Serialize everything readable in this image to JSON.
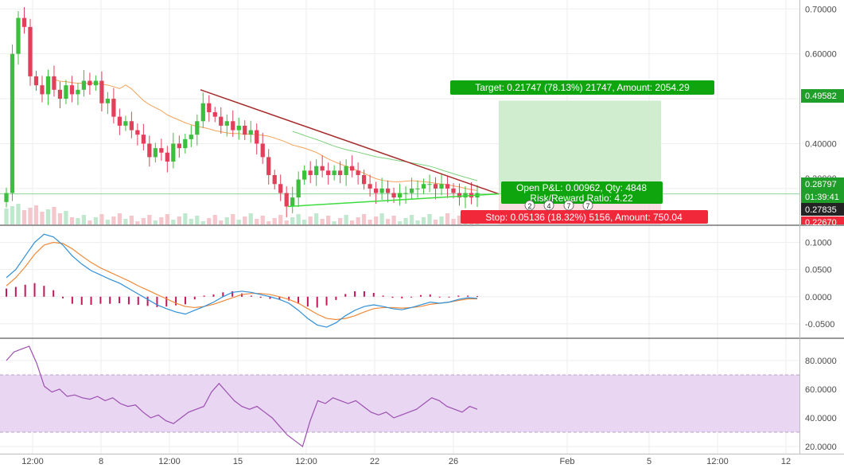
{
  "colors": {
    "up": "#26a69a",
    "up_bright": "#3cbf3c",
    "down": "#e0405a",
    "ma_fast": "#f5a35b",
    "ma_slow": "#7fd17f",
    "resistance": "#a52a2a",
    "support": "#3ddc3d",
    "macd": "#2f8fd8",
    "signal": "#f08a3a",
    "hist": "#c2185b",
    "rsi": "#9c4fb0",
    "rsi_band": "#e9d6f3",
    "target_zone": "#cdeccd",
    "target_label": "#0ea50e",
    "stop_label": "#f0283a",
    "pnl_label": "#0ea50e",
    "axis_badge_dark": "#232323",
    "axis_badge_green": "#1f9e2a"
  },
  "chart_data": [
    {
      "type": "candlestick",
      "panel": "price",
      "x_ticks": [
        "12:00",
        "8",
        "12:00",
        "15",
        "12:00",
        "22",
        "26",
        "Feb",
        "5",
        "12:00",
        "12"
      ],
      "y_ticks": [
        "0.70000",
        "0.60000",
        "0.40000",
        "0.30000"
      ],
      "ylim": [
        0.22,
        0.72
      ],
      "grid": true,
      "close_series": [
        0.29,
        0.6,
        0.68,
        0.66,
        0.55,
        0.53,
        0.51,
        0.55,
        0.52,
        0.5,
        0.53,
        0.51,
        0.52,
        0.54,
        0.53,
        0.54,
        0.49,
        0.5,
        0.46,
        0.44,
        0.45,
        0.43,
        0.42,
        0.4,
        0.37,
        0.39,
        0.38,
        0.36,
        0.4,
        0.39,
        0.41,
        0.42,
        0.45,
        0.49,
        0.47,
        0.46,
        0.44,
        0.45,
        0.43,
        0.44,
        0.42,
        0.43,
        0.4,
        0.37,
        0.33,
        0.31,
        0.29,
        0.26,
        0.28,
        0.32,
        0.34,
        0.33,
        0.35,
        0.34,
        0.33,
        0.34,
        0.33,
        0.35,
        0.34,
        0.33,
        0.31,
        0.3,
        0.29,
        0.3,
        0.29,
        0.28,
        0.29,
        0.29,
        0.3,
        0.3,
        0.31,
        0.31,
        0.3,
        0.31,
        0.3,
        0.29,
        0.28,
        0.29,
        0.28,
        0.29
      ],
      "trendlines": [
        {
          "kind": "resistance",
          "from": [
            0.51,
            0.52
          ],
          "to": [
            0.288,
            0.288
          ]
        },
        {
          "kind": "support",
          "from": [
            0.26,
            0.26
          ],
          "to": [
            0.288,
            0.288
          ]
        }
      ],
      "annotations": {
        "target": "Target: 0.21747 (78.13%) 21747, Amount: 2054.29",
        "pnl": "Open P&L: 0.00962, Qty: 4848",
        "risk_reward": "Risk/Reward Ratio: 4.22",
        "stop": "Stop: 0.05136 (18.32%) 5156, Amount: 750.04",
        "target_price": "0.49582",
        "entry_price": "0.28797",
        "countdown": "01:39:41",
        "last_price": "0.27835",
        "stop_price_partial": "0.22670",
        "hidden_tick": "0.30000",
        "event_markers": [
          "2",
          "4",
          "7",
          "7"
        ]
      }
    },
    {
      "type": "line",
      "panel": "macd",
      "y_ticks": [
        "0.1000",
        "0.0500",
        "0.0000",
        "-0.0500"
      ],
      "ylim": [
        -0.075,
        0.13
      ],
      "series": [
        {
          "role": "macd",
          "values": [
            0.035,
            0.05,
            0.075,
            0.1,
            0.115,
            0.11,
            0.095,
            0.075,
            0.06,
            0.048,
            0.04,
            0.032,
            0.025,
            0.015,
            0.005,
            -0.005,
            -0.015,
            -0.022,
            -0.028,
            -0.032,
            -0.025,
            -0.018,
            -0.01,
            0.0,
            0.008,
            0.01,
            0.008,
            0.004,
            0.0,
            -0.005,
            -0.012,
            -0.025,
            -0.04,
            -0.052,
            -0.056,
            -0.048,
            -0.035,
            -0.025,
            -0.018,
            -0.015,
            -0.018,
            -0.022,
            -0.024,
            -0.02,
            -0.015,
            -0.01,
            -0.012,
            -0.01,
            -0.005,
            -0.002,
            -0.003
          ]
        },
        {
          "role": "signal",
          "values": [
            0.02,
            0.035,
            0.055,
            0.078,
            0.095,
            0.1,
            0.098,
            0.088,
            0.075,
            0.063,
            0.053,
            0.045,
            0.037,
            0.029,
            0.02,
            0.012,
            0.004,
            -0.004,
            -0.012,
            -0.018,
            -0.02,
            -0.018,
            -0.014,
            -0.008,
            -0.002,
            0.004,
            0.006,
            0.006,
            0.004,
            0.0,
            -0.005,
            -0.012,
            -0.022,
            -0.032,
            -0.04,
            -0.042,
            -0.04,
            -0.035,
            -0.028,
            -0.022,
            -0.02,
            -0.02,
            -0.021,
            -0.02,
            -0.018,
            -0.014,
            -0.012,
            -0.01,
            -0.007,
            -0.004,
            -0.004
          ]
        },
        {
          "role": "histogram",
          "values": [
            0.015,
            0.018,
            0.022,
            0.025,
            0.02,
            0.012,
            -0.003,
            -0.013,
            -0.015,
            -0.015,
            -0.013,
            -0.013,
            -0.012,
            -0.014,
            -0.015,
            -0.017,
            -0.019,
            -0.018,
            -0.016,
            -0.014,
            -0.005,
            0.002,
            0.004,
            0.008,
            0.01,
            0.006,
            0.002,
            -0.002,
            -0.004,
            -0.005,
            -0.007,
            -0.013,
            -0.018,
            -0.02,
            -0.016,
            -0.006,
            0.005,
            0.01,
            0.01,
            0.007,
            0.002,
            -0.002,
            -0.003,
            0.0,
            0.003,
            0.004,
            0.0,
            0.0,
            0.002,
            0.002,
            0.001
          ]
        }
      ]
    },
    {
      "type": "line",
      "panel": "rsi",
      "y_ticks": [
        "80.0000",
        "60.0000",
        "40.0000",
        "20.0000"
      ],
      "ylim": [
        15,
        95
      ],
      "band": [
        30,
        70
      ],
      "series": [
        {
          "role": "rsi",
          "values": [
            80,
            86,
            88,
            90,
            78,
            62,
            58,
            60,
            55,
            56,
            54,
            53,
            55,
            52,
            54,
            50,
            48,
            49,
            44,
            40,
            42,
            38,
            36,
            40,
            44,
            46,
            48,
            58,
            64,
            58,
            52,
            48,
            46,
            48,
            44,
            40,
            34,
            28,
            24,
            20,
            38,
            52,
            50,
            54,
            52,
            50,
            52,
            48,
            44,
            42,
            44,
            40,
            42,
            44,
            46,
            50,
            54,
            52,
            48,
            46,
            44,
            48,
            46
          ]
        }
      ]
    }
  ]
}
